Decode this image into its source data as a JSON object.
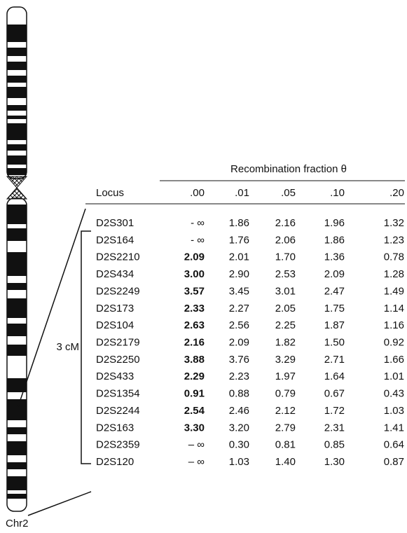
{
  "figure": {
    "group_header": "Recombination fraction θ",
    "columns": [
      "Locus",
      ".00",
      ".01",
      ".05",
      ".10",
      ".20"
    ],
    "rows": [
      [
        "D2S301",
        "- ∞",
        "1.86",
        "2.16",
        "1.96",
        "1.32"
      ],
      [
        "D2S164",
        "- ∞",
        "1.76",
        "2.06",
        "1.86",
        "1.23"
      ],
      [
        "D2S2210",
        "2.09",
        "2.01",
        "1.70",
        "1.36",
        "0.78"
      ],
      [
        "D2S434",
        "3.00",
        "2.90",
        "2.53",
        "2.09",
        "1.28"
      ],
      [
        "D2S2249",
        "3.57",
        "3.45",
        "3.01",
        "2.47",
        "1.49"
      ],
      [
        "D2S173",
        "2.33",
        "2.27",
        "2.05",
        "1.75",
        "1.14"
      ],
      [
        "D2S104",
        "2.63",
        "2.56",
        "2.25",
        "1.87",
        "1.16"
      ],
      [
        "D2S2179",
        "2.16",
        "2.09",
        "1.82",
        "1.50",
        "0.92"
      ],
      [
        "D2S2250",
        "3.88",
        "3.76",
        "3.29",
        "2.71",
        "1.66"
      ],
      [
        "D2S433",
        "2.29",
        "2.23",
        "1.97",
        "1.64",
        "1.01"
      ],
      [
        "D2S1354",
        "0.91",
        "0.88",
        "0.79",
        "0.67",
        "0.43"
      ],
      [
        "D2S2244",
        "2.54",
        "2.46",
        "2.12",
        "1.72",
        "1.03"
      ],
      [
        "D2S163",
        "3.30",
        "3.20",
        "2.79",
        "2.31",
        "1.41"
      ],
      [
        "D2S2359",
        "– ∞",
        "0.30",
        "0.81",
        "0.85",
        "0.64"
      ],
      [
        "D2S120",
        "– ∞",
        "1.03",
        "1.40",
        "1.30",
        "0.87"
      ]
    ],
    "interval_label": "3 cM",
    "chromosome_label": "Chr2"
  }
}
